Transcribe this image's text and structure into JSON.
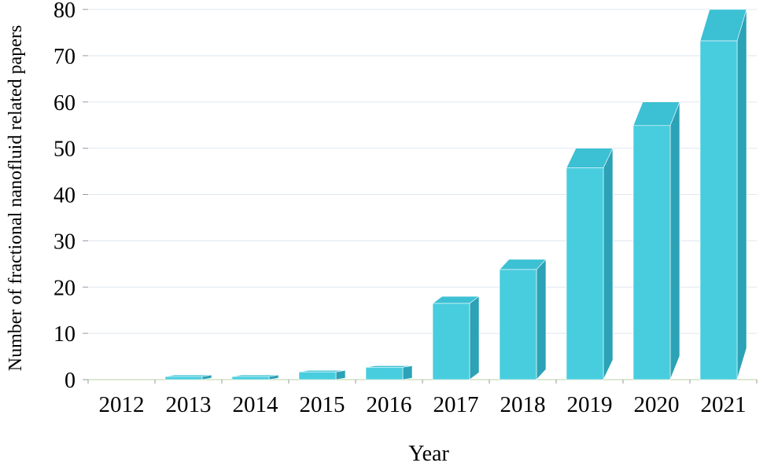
{
  "chart_data": {
    "type": "bar",
    "title": "",
    "xlabel": "Year",
    "ylabel": "Number of fractional nanofluid related papers",
    "categories": [
      "2012",
      "2013",
      "2014",
      "2015",
      "2016",
      "2017",
      "2018",
      "2019",
      "2020",
      "2021"
    ],
    "values": [
      0,
      1,
      1,
      2,
      3,
      18,
      26,
      50,
      60,
      80
    ],
    "ylim": [
      0,
      80
    ],
    "ytick_step": 10,
    "yticks": [
      0,
      10,
      20,
      30,
      40,
      50,
      60,
      70,
      80
    ],
    "grid": "horizontal",
    "legend": "none",
    "style": "3d-column",
    "bar_color": "#48CDDE",
    "bar_top_color": "#3CC0D4",
    "bar_side_color": "#2BA2B6",
    "gridline_color": "#dde7f2",
    "baseline_color": "#cfe2c4",
    "tick_color": "#9a9a9a",
    "text_color": "#000000"
  }
}
